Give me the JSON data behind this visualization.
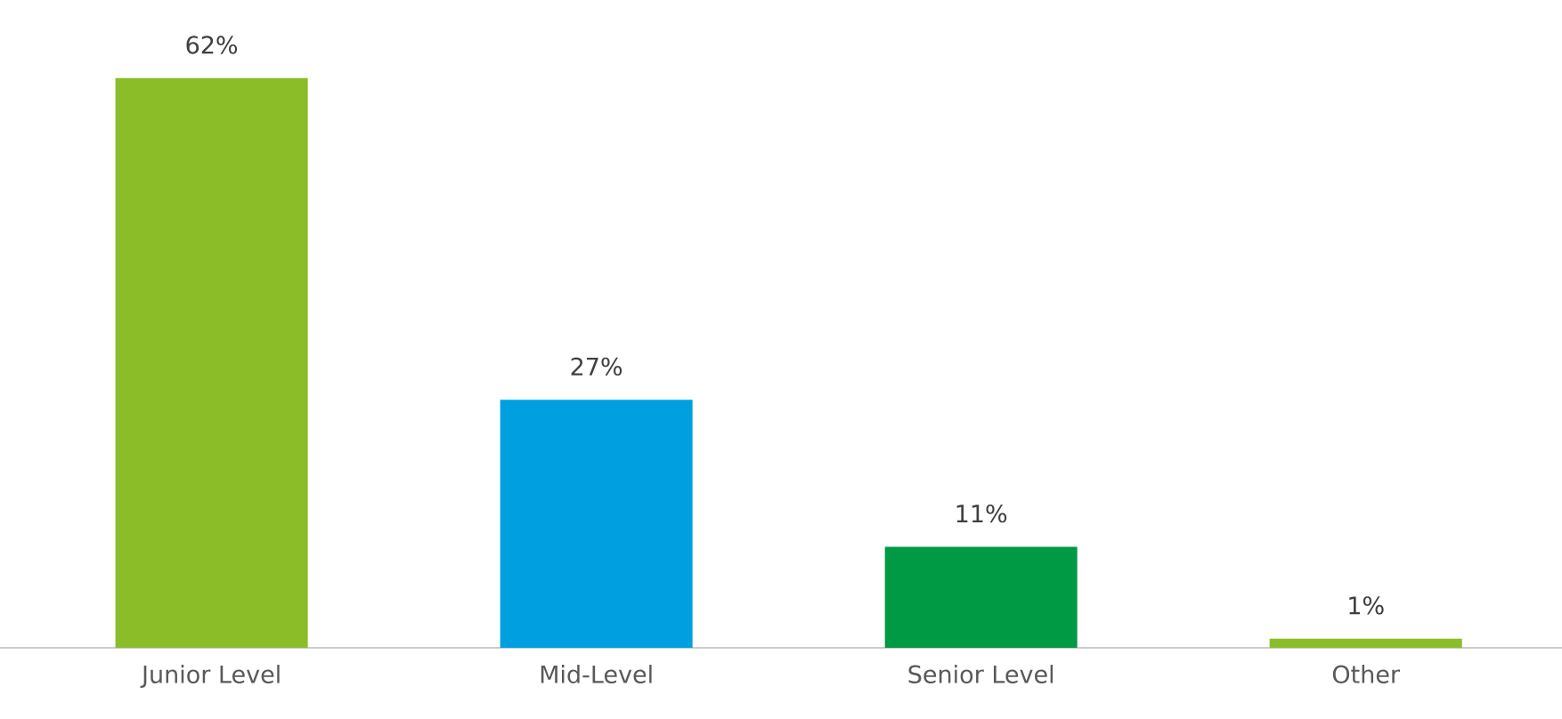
{
  "chart_data": {
    "type": "bar",
    "categories": [
      "Junior Level",
      "Mid-Level",
      "Senior Level",
      "Other"
    ],
    "values": [
      62,
      27,
      11,
      1
    ],
    "colors": [
      "#8abd28",
      "#00a0e0",
      "#009a44",
      "#8abd28"
    ],
    "value_labels": [
      "62%",
      "27%",
      "11%",
      "1%"
    ]
  }
}
